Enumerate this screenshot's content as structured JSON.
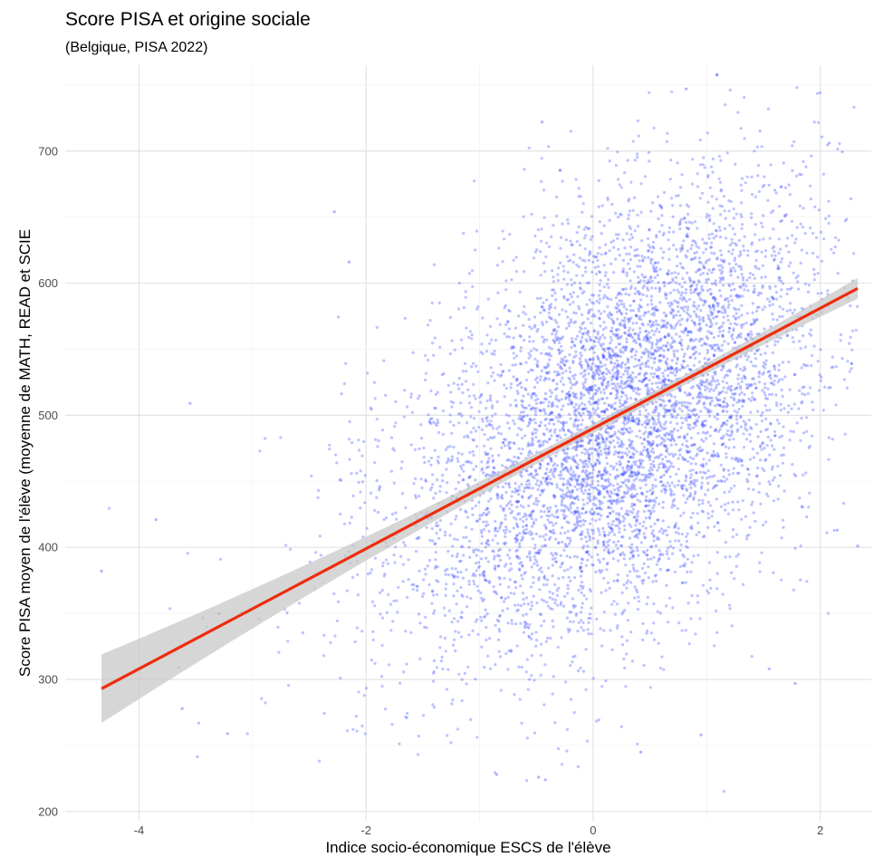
{
  "chart_data": {
    "type": "scatter",
    "title": "Score PISA et origine sociale",
    "subtitle": "(Belgique, PISA 2022)",
    "xlabel": "Indice socio-économique ESCS de l'élève",
    "ylabel": "Score PISA moyen de l'élève (moyenne de MATH, READ et SCIE",
    "xlim": [
      -4.65,
      2.45
    ],
    "ylim": [
      193,
      765
    ],
    "x_ticks": [
      -4,
      -2,
      0,
      2
    ],
    "y_ticks": [
      200,
      300,
      400,
      500,
      600,
      700
    ],
    "x_tick_labels": [
      "-4",
      "-2",
      "0",
      "2"
    ],
    "y_tick_labels": [
      "200",
      "300",
      "400",
      "500",
      "600",
      "700"
    ],
    "grid": true,
    "points_color": "#3344ff",
    "regression_color": "#ee2c0c",
    "band_color": "#c8c8c8",
    "regression": {
      "intercept": 490,
      "slope": 45.5,
      "x_range": [
        -4.33,
        2.33
      ]
    },
    "point_cloud": {
      "n": 6000,
      "x_mean": 0.3,
      "x_sd": 0.85,
      "x_range": [
        -4.33,
        2.33
      ],
      "residual_sd": 78
    },
    "sample_points": [
      [
        -4.33,
        382
      ],
      [
        -3.85,
        421
      ],
      [
        -3.55,
        509
      ],
      [
        -3.62,
        278
      ],
      [
        -2.28,
        654
      ],
      [
        -2.15,
        616
      ],
      [
        -0.45,
        722
      ],
      [
        1.09,
        758
      ],
      [
        0.82,
        747
      ],
      [
        2.08,
        706
      ],
      [
        2.33,
        401
      ],
      [
        2.15,
        413
      ],
      [
        -0.85,
        228
      ],
      [
        -0.42,
        224
      ],
      [
        0.42,
        245
      ],
      [
        -0.48,
        226
      ],
      [
        0.95,
        258
      ],
      [
        1.55,
        308
      ],
      [
        1.78,
        297
      ],
      [
        -3.22,
        259
      ]
    ]
  }
}
